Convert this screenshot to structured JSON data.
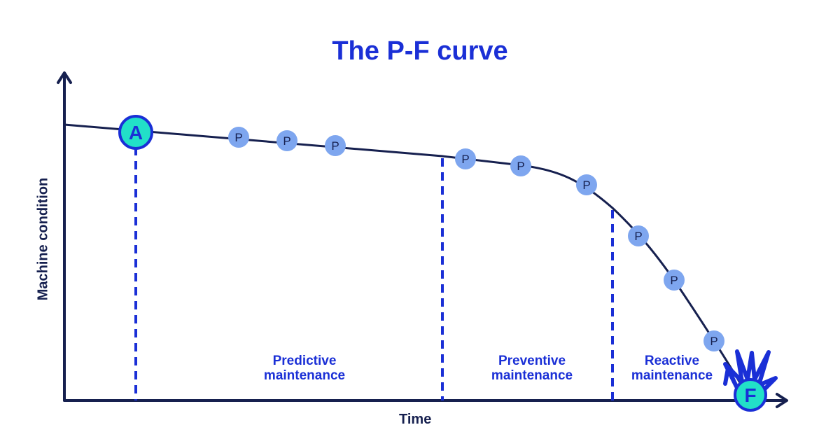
{
  "title": "The P-F curve",
  "axes": {
    "x_label": "Time",
    "y_label": "Machine condition"
  },
  "points": {
    "start": "A",
    "failure": "F",
    "potential_failure": "P"
  },
  "zones": [
    {
      "line1": "Predictive",
      "line2": "maintenance"
    },
    {
      "line1": "Preventive",
      "line2": "maintenance"
    },
    {
      "line1": "Reactive",
      "line2": "maintenance"
    }
  ],
  "colors": {
    "accent": "#1a2fd6",
    "curve": "#16204f",
    "marker_fill": "#22e0c8",
    "p_fill": "#7ea6ef"
  }
}
